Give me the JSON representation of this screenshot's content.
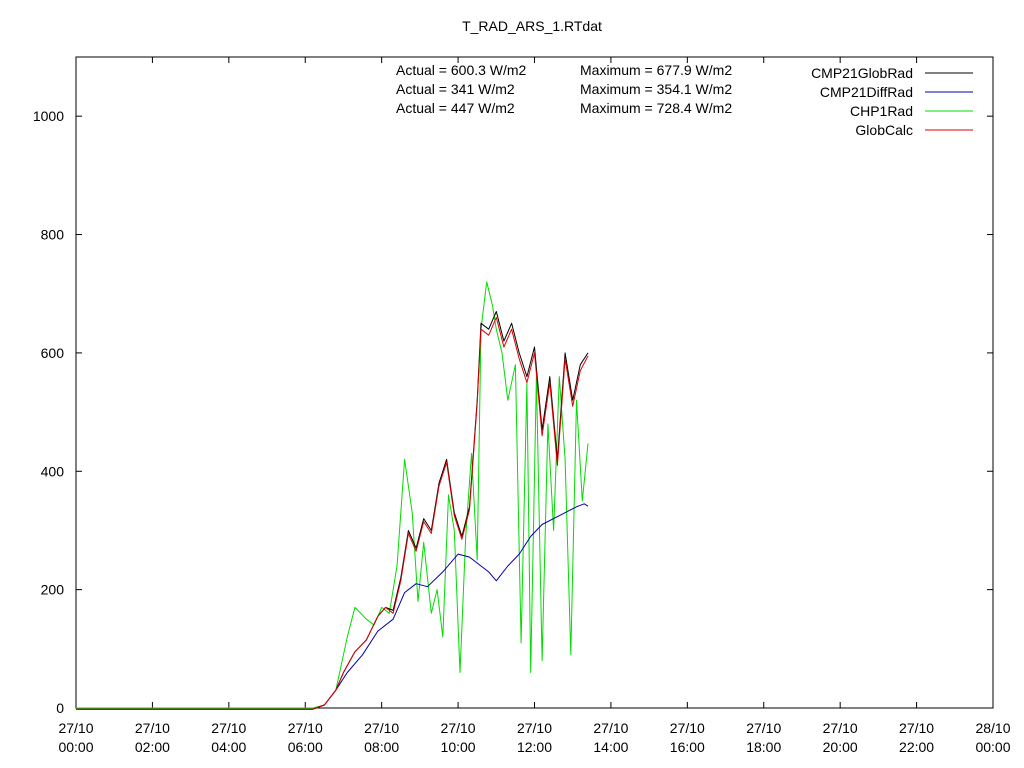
{
  "chart_data": {
    "type": "line",
    "title": "T_RAD_ARS_1.RTdat",
    "xlabel": "",
    "ylabel": "",
    "xlim": [
      0,
      24
    ],
    "ylim": [
      0,
      1100
    ],
    "yticks": [
      0,
      200,
      400,
      600,
      800,
      1000
    ],
    "xticks": [
      {
        "h": 0,
        "date": "27/10",
        "time": "00:00"
      },
      {
        "h": 2,
        "date": "27/10",
        "time": "02:00"
      },
      {
        "h": 4,
        "date": "27/10",
        "time": "04:00"
      },
      {
        "h": 6,
        "date": "27/10",
        "time": "06:00"
      },
      {
        "h": 8,
        "date": "27/10",
        "time": "08:00"
      },
      {
        "h": 10,
        "date": "27/10",
        "time": "10:00"
      },
      {
        "h": 12,
        "date": "27/10",
        "time": "12:00"
      },
      {
        "h": 14,
        "date": "27/10",
        "time": "14:00"
      },
      {
        "h": 16,
        "date": "27/10",
        "time": "16:00"
      },
      {
        "h": 18,
        "date": "27/10",
        "time": "18:00"
      },
      {
        "h": 20,
        "date": "27/10",
        "time": "20:00"
      },
      {
        "h": 22,
        "date": "27/10",
        "time": "22:00"
      },
      {
        "h": 24,
        "date": "28/10",
        "time": "00:00"
      }
    ],
    "grid": false,
    "legend_position": "top-right",
    "stats": [
      {
        "actual": "Actual = 600.3 W/m2",
        "maximum": "Maximum = 677.9 W/m2"
      },
      {
        "actual": "Actual = 341 W/m2",
        "maximum": "Maximum = 354.1 W/m2"
      },
      {
        "actual": "Actual = 447 W/m2",
        "maximum": "Maximum = 728.4 W/m2"
      }
    ],
    "series": [
      {
        "name": "CMP21GlobRad",
        "color": "#000000",
        "points": [
          [
            0,
            -2
          ],
          [
            6.2,
            -2
          ],
          [
            6.5,
            5
          ],
          [
            6.8,
            30
          ],
          [
            7.0,
            60
          ],
          [
            7.3,
            95
          ],
          [
            7.6,
            115
          ],
          [
            7.9,
            155
          ],
          [
            8.1,
            170
          ],
          [
            8.3,
            165
          ],
          [
            8.5,
            220
          ],
          [
            8.7,
            300
          ],
          [
            8.9,
            270
          ],
          [
            9.1,
            320
          ],
          [
            9.3,
            300
          ],
          [
            9.5,
            380
          ],
          [
            9.7,
            420
          ],
          [
            9.9,
            330
          ],
          [
            10.1,
            290
          ],
          [
            10.3,
            340
          ],
          [
            10.5,
            520
          ],
          [
            10.6,
            650
          ],
          [
            10.8,
            640
          ],
          [
            11.0,
            670
          ],
          [
            11.2,
            620
          ],
          [
            11.4,
            650
          ],
          [
            11.6,
            600
          ],
          [
            11.8,
            560
          ],
          [
            12.0,
            610
          ],
          [
            12.2,
            470
          ],
          [
            12.4,
            560
          ],
          [
            12.6,
            420
          ],
          [
            12.8,
            600
          ],
          [
            13.0,
            520
          ],
          [
            13.2,
            580
          ],
          [
            13.4,
            600
          ]
        ]
      },
      {
        "name": "CMP21DiffRad",
        "color": "#0000aa",
        "points": [
          [
            0,
            -2
          ],
          [
            6.2,
            -2
          ],
          [
            6.5,
            5
          ],
          [
            6.8,
            30
          ],
          [
            7.1,
            60
          ],
          [
            7.5,
            90
          ],
          [
            7.9,
            130
          ],
          [
            8.3,
            150
          ],
          [
            8.6,
            195
          ],
          [
            8.9,
            210
          ],
          [
            9.2,
            205
          ],
          [
            9.6,
            230
          ],
          [
            10.0,
            260
          ],
          [
            10.3,
            255
          ],
          [
            10.6,
            240
          ],
          [
            10.8,
            230
          ],
          [
            11.0,
            215
          ],
          [
            11.3,
            240
          ],
          [
            11.6,
            260
          ],
          [
            11.9,
            290
          ],
          [
            12.2,
            310
          ],
          [
            12.5,
            320
          ],
          [
            12.8,
            330
          ],
          [
            13.1,
            340
          ],
          [
            13.3,
            345
          ],
          [
            13.4,
            341
          ]
        ]
      },
      {
        "name": "CHP1Rad",
        "color": "#00dd00",
        "points": [
          [
            0,
            0
          ],
          [
            6.2,
            0
          ],
          [
            6.5,
            5
          ],
          [
            6.8,
            30
          ],
          [
            7.1,
            120
          ],
          [
            7.3,
            170
          ],
          [
            7.6,
            150
          ],
          [
            7.8,
            140
          ],
          [
            8.0,
            170
          ],
          [
            8.2,
            160
          ],
          [
            8.4,
            240
          ],
          [
            8.6,
            420
          ],
          [
            8.8,
            330
          ],
          [
            8.95,
            180
          ],
          [
            9.1,
            280
          ],
          [
            9.3,
            160
          ],
          [
            9.45,
            200
          ],
          [
            9.6,
            120
          ],
          [
            9.75,
            360
          ],
          [
            9.9,
            300
          ],
          [
            10.05,
            60
          ],
          [
            10.2,
            290
          ],
          [
            10.35,
            430
          ],
          [
            10.5,
            250
          ],
          [
            10.6,
            640
          ],
          [
            10.75,
            720
          ],
          [
            10.9,
            680
          ],
          [
            11.0,
            640
          ],
          [
            11.15,
            600
          ],
          [
            11.3,
            520
          ],
          [
            11.5,
            580
          ],
          [
            11.65,
            110
          ],
          [
            11.8,
            550
          ],
          [
            11.9,
            60
          ],
          [
            12.05,
            560
          ],
          [
            12.2,
            80
          ],
          [
            12.35,
            480
          ],
          [
            12.5,
            300
          ],
          [
            12.65,
            560
          ],
          [
            12.8,
            420
          ],
          [
            12.95,
            90
          ],
          [
            13.1,
            520
          ],
          [
            13.25,
            350
          ],
          [
            13.4,
            447
          ]
        ]
      },
      {
        "name": "GlobCalc",
        "color": "#dd0000",
        "points": [
          [
            0,
            -2
          ],
          [
            6.2,
            -2
          ],
          [
            6.5,
            5
          ],
          [
            6.8,
            30
          ],
          [
            7.0,
            60
          ],
          [
            7.3,
            95
          ],
          [
            7.6,
            115
          ],
          [
            7.9,
            155
          ],
          [
            8.1,
            170
          ],
          [
            8.3,
            160
          ],
          [
            8.5,
            215
          ],
          [
            8.7,
            295
          ],
          [
            8.9,
            265
          ],
          [
            9.1,
            315
          ],
          [
            9.3,
            295
          ],
          [
            9.5,
            375
          ],
          [
            9.7,
            415
          ],
          [
            9.9,
            325
          ],
          [
            10.1,
            285
          ],
          [
            10.3,
            335
          ],
          [
            10.5,
            515
          ],
          [
            10.6,
            640
          ],
          [
            10.8,
            630
          ],
          [
            11.0,
            660
          ],
          [
            11.2,
            610
          ],
          [
            11.4,
            640
          ],
          [
            11.6,
            590
          ],
          [
            11.8,
            550
          ],
          [
            12.0,
            600
          ],
          [
            12.2,
            460
          ],
          [
            12.4,
            550
          ],
          [
            12.6,
            410
          ],
          [
            12.8,
            590
          ],
          [
            13.0,
            510
          ],
          [
            13.2,
            570
          ],
          [
            13.4,
            595
          ]
        ]
      }
    ]
  }
}
